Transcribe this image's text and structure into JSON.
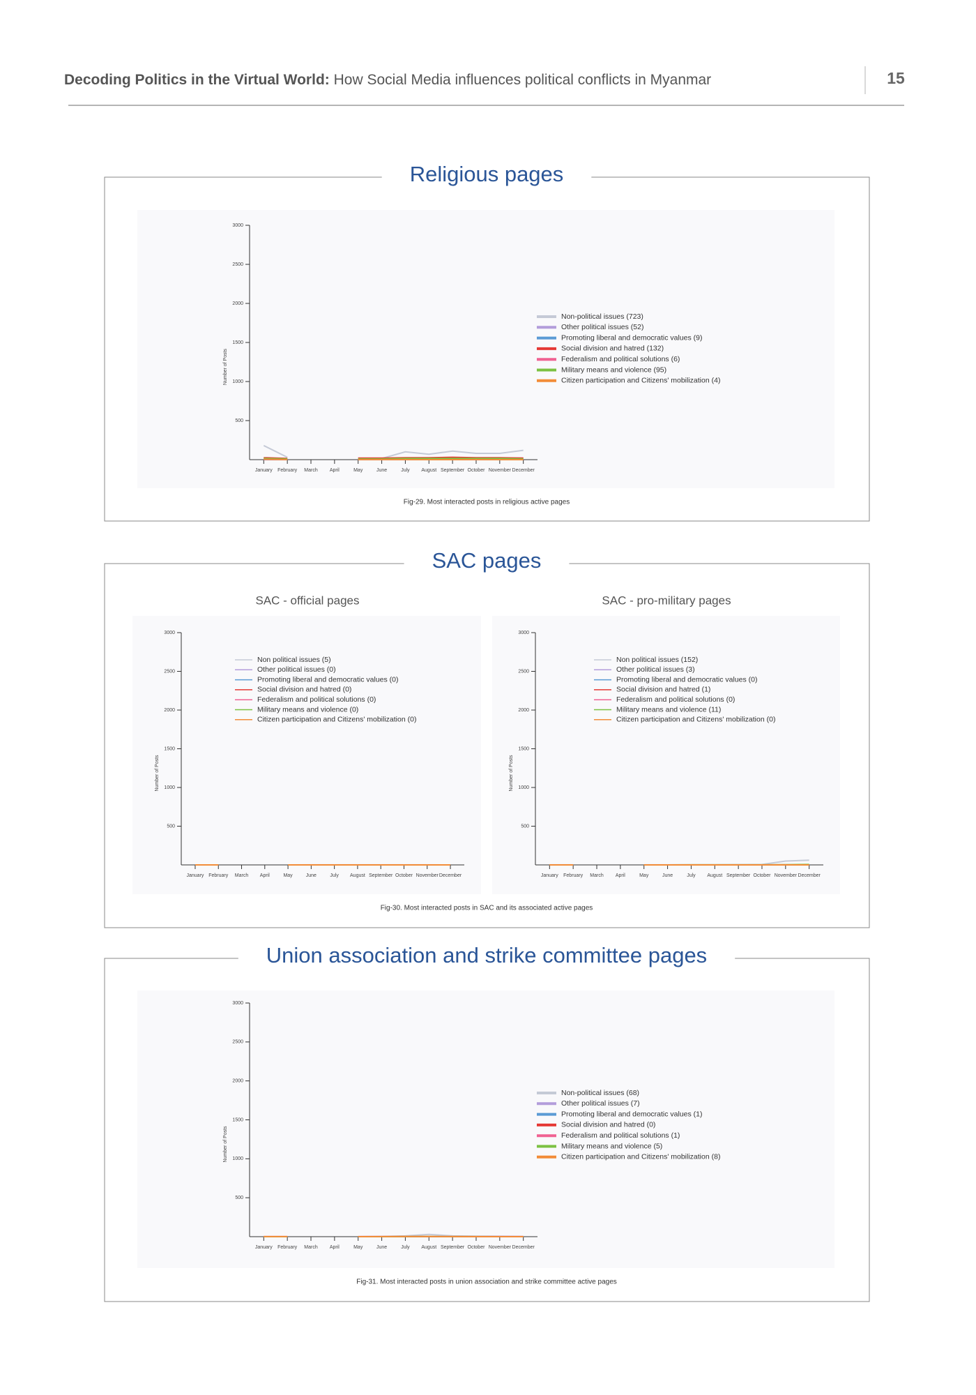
{
  "header": {
    "title_bold": "Decoding Politics in the Virtual World:",
    "title_rest": "How Social Media influences political conflicts in Myanmar",
    "page_number": "15"
  },
  "sections": [
    {
      "title": "Religious pages",
      "caption": "Fig-29. Most interacted posts in religious active pages"
    },
    {
      "title": "SAC pages",
      "caption": "Fig-30. Most interacted posts in SAC and its associated active pages"
    },
    {
      "title": "Union association and strike committee pages",
      "caption": "Fig-31. Most interacted posts in union association and strike committee active pages"
    }
  ],
  "chart_data": [
    {
      "type": "line",
      "y_label": "Number of Posts",
      "categories": [
        "January",
        "February",
        "March",
        "April",
        "May",
        "June",
        "July",
        "August",
        "September",
        "October",
        "November",
        "December"
      ],
      "ylim": [
        0,
        3000
      ],
      "yticks": [
        500,
        1000,
        1500,
        2000,
        2500,
        3000
      ],
      "series": [
        {
          "name": "Non-political issues (723)",
          "color": "#c5cad6",
          "values": [
            180,
            30,
            null,
            null,
            5,
            15,
            100,
            70,
            110,
            80,
            80,
            120
          ]
        },
        {
          "name": "Other political issues (52)",
          "color": "#b39ddb",
          "values": [
            10,
            5,
            null,
            null,
            5,
            10,
            20,
            15,
            20,
            15,
            15,
            20
          ]
        },
        {
          "name": "Promoting liberal and democratic values (9)",
          "color": "#5b9bd5",
          "values": [
            0,
            0,
            null,
            null,
            0,
            2,
            2,
            1,
            1,
            1,
            1,
            1
          ]
        },
        {
          "name": "Social division and hatred (132)",
          "color": "#e53935",
          "values": [
            25,
            15,
            null,
            null,
            20,
            20,
            25,
            25,
            30,
            25,
            25,
            20
          ]
        },
        {
          "name": "Federalism and political solutions (6)",
          "color": "#f06292",
          "values": [
            2,
            1,
            null,
            null,
            1,
            1,
            1,
            1,
            1,
            1,
            1,
            1
          ]
        },
        {
          "name": "Military means and violence (95)",
          "color": "#7cc142",
          "values": [
            15,
            10,
            null,
            null,
            10,
            10,
            15,
            15,
            15,
            15,
            15,
            10
          ]
        },
        {
          "name": "Citizen participation and Citizens' mobilization (4)",
          "color": "#f28c38",
          "values": [
            5,
            1,
            null,
            null,
            1,
            1,
            1,
            0,
            0,
            1,
            0,
            0
          ]
        }
      ]
    },
    {
      "type": "line",
      "title": "SAC - official pages",
      "y_label": "Number of Posts",
      "categories": [
        "January",
        "February",
        "March",
        "April",
        "May",
        "June",
        "July",
        "August",
        "September",
        "October",
        "November",
        "December"
      ],
      "ylim": [
        0,
        3000
      ],
      "yticks": [
        500,
        1000,
        1500,
        2000,
        2500,
        3000
      ],
      "series": [
        {
          "name": "Non political issues (5)",
          "color": "#c5cad6",
          "values": [
            0,
            0,
            null,
            null,
            0,
            1,
            1,
            1,
            1,
            1,
            1,
            0
          ]
        },
        {
          "name": "Other political issues (0)",
          "color": "#b39ddb",
          "values": [
            0,
            0,
            null,
            null,
            0,
            0,
            0,
            0,
            0,
            0,
            0,
            0
          ]
        },
        {
          "name": "Promoting liberal and democratic values (0)",
          "color": "#5b9bd5",
          "values": [
            0,
            0,
            null,
            null,
            0,
            0,
            0,
            0,
            0,
            0,
            0,
            0
          ]
        },
        {
          "name": "Social division and hatred (0)",
          "color": "#e53935",
          "values": [
            0,
            0,
            null,
            null,
            0,
            0,
            0,
            0,
            0,
            0,
            0,
            0
          ]
        },
        {
          "name": "Federalism and political solutions (0)",
          "color": "#f06292",
          "values": [
            0,
            0,
            null,
            null,
            0,
            0,
            0,
            0,
            0,
            0,
            0,
            0
          ]
        },
        {
          "name": "Military means and violence (0)",
          "color": "#7cc142",
          "values": [
            0,
            0,
            null,
            null,
            0,
            0,
            0,
            0,
            0,
            0,
            0,
            0
          ]
        },
        {
          "name": "Citizen participation and Citizens' mobilization (0)",
          "color": "#f28c38",
          "values": [
            0,
            0,
            null,
            null,
            0,
            0,
            0,
            0,
            0,
            0,
            0,
            0
          ]
        }
      ]
    },
    {
      "type": "line",
      "title": "SAC - pro-military pages",
      "y_label": "Number of Posts",
      "categories": [
        "January",
        "February",
        "March",
        "April",
        "May",
        "June",
        "July",
        "August",
        "September",
        "October",
        "November",
        "December"
      ],
      "ylim": [
        0,
        3000
      ],
      "yticks": [
        500,
        1000,
        1500,
        2000,
        2500,
        3000
      ],
      "series": [
        {
          "name": "Non political issues (152)",
          "color": "#c5cad6",
          "values": [
            1,
            1,
            null,
            null,
            1,
            1,
            2,
            2,
            3,
            5,
            50,
            60
          ]
        },
        {
          "name": "Other political issues (3)",
          "color": "#b39ddb",
          "values": [
            0,
            0,
            null,
            null,
            0,
            0,
            0,
            0,
            1,
            0,
            1,
            1
          ]
        },
        {
          "name": "Promoting liberal and democratic values (0)",
          "color": "#5b9bd5",
          "values": [
            0,
            0,
            null,
            null,
            0,
            0,
            0,
            0,
            0,
            0,
            0,
            0
          ]
        },
        {
          "name": "Social division and hatred (1)",
          "color": "#e53935",
          "values": [
            0,
            0,
            null,
            null,
            0,
            0,
            0,
            0,
            0,
            0,
            1,
            0
          ]
        },
        {
          "name": "Federalism and political solutions (0)",
          "color": "#f06292",
          "values": [
            0,
            0,
            null,
            null,
            0,
            0,
            0,
            0,
            0,
            0,
            0,
            0
          ]
        },
        {
          "name": "Military means and violence (11)",
          "color": "#7cc142",
          "values": [
            0,
            0,
            null,
            null,
            0,
            0,
            1,
            1,
            1,
            1,
            3,
            5
          ]
        },
        {
          "name": "Citizen participation and Citizens' mobilization (0)",
          "color": "#f28c38",
          "values": [
            0,
            0,
            null,
            null,
            0,
            0,
            0,
            0,
            0,
            0,
            0,
            0
          ]
        }
      ]
    },
    {
      "type": "line",
      "y_label": "Number of Posts",
      "categories": [
        "January",
        "February",
        "March",
        "April",
        "May",
        "June",
        "July",
        "August",
        "September",
        "October",
        "November",
        "December"
      ],
      "ylim": [
        0,
        3000
      ],
      "yticks": [
        500,
        1000,
        1500,
        2000,
        2500,
        3000
      ],
      "series": [
        {
          "name": "Non-political issues (68)",
          "color": "#c5cad6",
          "values": [
            0,
            0,
            null,
            null,
            1,
            3,
            10,
            30,
            10,
            5,
            5,
            4
          ]
        },
        {
          "name": "Other political issues (7)",
          "color": "#b39ddb",
          "values": [
            0,
            0,
            null,
            null,
            0,
            1,
            1,
            2,
            1,
            1,
            1,
            0
          ]
        },
        {
          "name": "Promoting liberal and democratic values (1)",
          "color": "#5b9bd5",
          "values": [
            0,
            0,
            null,
            null,
            0,
            0,
            0,
            1,
            0,
            0,
            0,
            0
          ]
        },
        {
          "name": "Social division and hatred (0)",
          "color": "#e53935",
          "values": [
            0,
            0,
            null,
            null,
            0,
            0,
            0,
            0,
            0,
            0,
            0,
            0
          ]
        },
        {
          "name": "Federalism and political solutions (1)",
          "color": "#f06292",
          "values": [
            1,
            1,
            null,
            null,
            1,
            1,
            1,
            1,
            1,
            1,
            1,
            1
          ]
        },
        {
          "name": "Military means and violence (5)",
          "color": "#7cc142",
          "values": [
            0,
            0,
            null,
            null,
            0,
            0,
            1,
            2,
            1,
            1,
            0,
            0
          ]
        },
        {
          "name": "Citizen participation and Citizens' mobilization (8)",
          "color": "#f28c38",
          "values": [
            1,
            1,
            null,
            null,
            0,
            1,
            2,
            3,
            1,
            0,
            0,
            0
          ]
        }
      ]
    }
  ]
}
